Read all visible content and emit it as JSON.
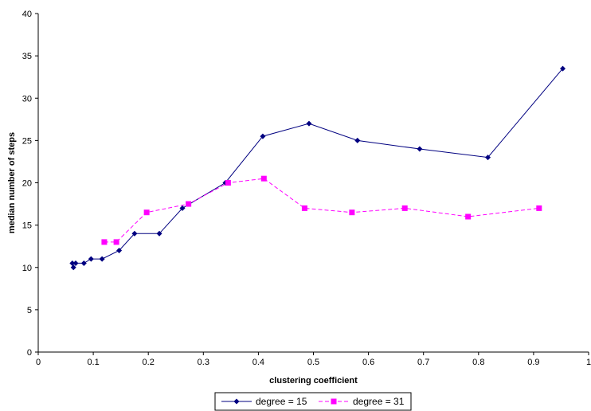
{
  "chart_data": {
    "type": "line",
    "xlabel": "clustering coefficient",
    "ylabel": "median number of steps",
    "xlim": [
      0,
      1
    ],
    "ylim": [
      0,
      40
    ],
    "xticks": [
      "0",
      "0.1",
      "0.2",
      "0.3",
      "0.4",
      "0.5",
      "0.6",
      "0.7",
      "0.8",
      "0.9",
      "1"
    ],
    "yticks": [
      "0",
      "5",
      "10",
      "15",
      "20",
      "25",
      "30",
      "35",
      "40"
    ],
    "grid": false,
    "legend_position": "bottom",
    "series": [
      {
        "name": "degree = 15",
        "color": "#000080",
        "dash": "solid",
        "marker": "diamond",
        "points": [
          [
            0.064,
            10.0
          ],
          [
            0.062,
            10.5
          ],
          [
            0.068,
            10.5
          ],
          [
            0.083,
            10.5
          ],
          [
            0.096,
            11.0
          ],
          [
            0.116,
            11.0
          ],
          [
            0.147,
            12.0
          ],
          [
            0.175,
            14.0
          ],
          [
            0.22,
            14.0
          ],
          [
            0.262,
            17.0
          ],
          [
            0.34,
            20.0
          ],
          [
            0.408,
            25.5
          ],
          [
            0.492,
            27.0
          ],
          [
            0.58,
            25.0
          ],
          [
            0.693,
            24.0
          ],
          [
            0.817,
            23.0
          ],
          [
            0.953,
            33.5
          ]
        ]
      },
      {
        "name": "degree = 31",
        "color": "#FF00FF",
        "dash": "dashed",
        "marker": "square",
        "points": [
          [
            0.12,
            13.0
          ],
          [
            0.142,
            13.0
          ],
          [
            0.197,
            16.5
          ],
          [
            0.273,
            17.5
          ],
          [
            0.345,
            20.0
          ],
          [
            0.41,
            20.5
          ],
          [
            0.484,
            17.0
          ],
          [
            0.57,
            16.5
          ],
          [
            0.666,
            17.0
          ],
          [
            0.781,
            16.0
          ],
          [
            0.91,
            17.0
          ]
        ]
      }
    ]
  }
}
